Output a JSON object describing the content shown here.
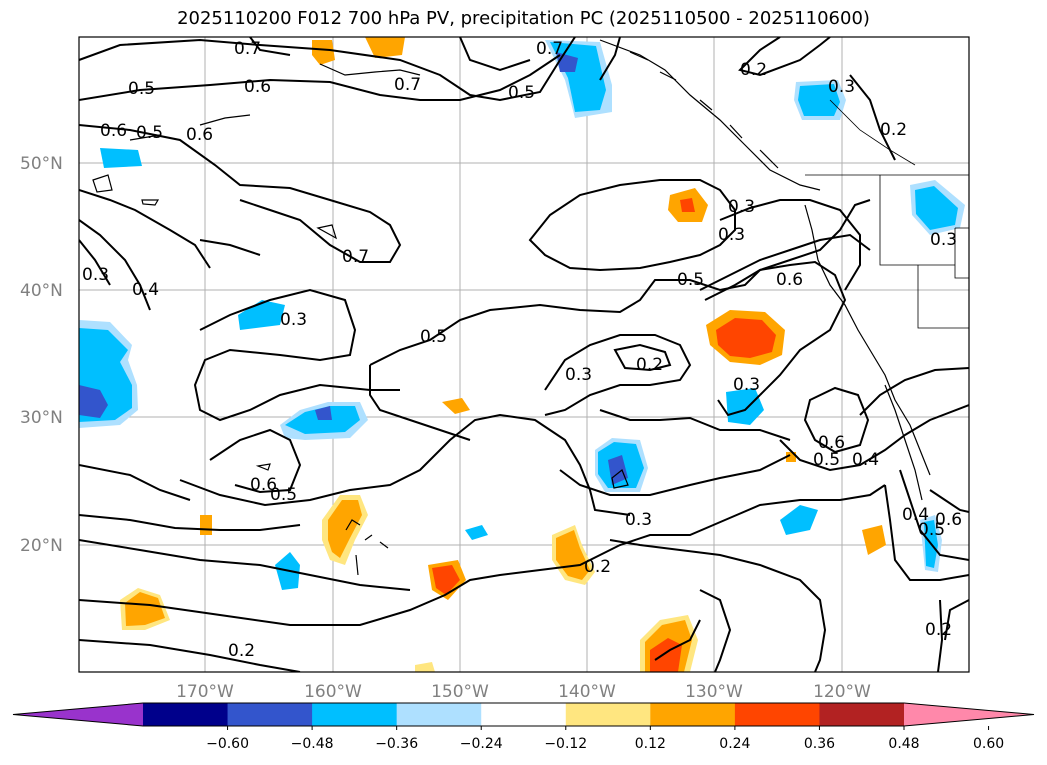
{
  "title": "2025110200 F012 700 hPa PV, precipitation PC (2025110500 - 2025110600)",
  "lat_labels": [
    "50°N",
    "40°N",
    "30°N",
    "20°N"
  ],
  "lon_labels": [
    "170°W",
    "160°W",
    "150°W",
    "140°W",
    "130°W",
    "120°W"
  ],
  "colorbar": {
    "ticks": [
      "−0.60",
      "−0.48",
      "−0.36",
      "−0.24",
      "−0.12",
      "0.12",
      "0.24",
      "0.36",
      "0.48",
      "0.60"
    ],
    "colors": [
      "#9933cc",
      "#00008b",
      "#3355cc",
      "#00bfff",
      "#aee0ff",
      "#ffffff",
      "#ffe680",
      "#ffa500",
      "#ff4500",
      "#b22222",
      "#ff88aa"
    ]
  },
  "contour_labels": [
    "0.7",
    "0.6",
    "0.7",
    "0.5",
    "0.7",
    "0.5",
    "0.2",
    "0.3",
    "0.5",
    "0.6",
    "0.6",
    "0.2",
    "0.7",
    "0.3",
    "0.4",
    "0.3",
    "0.5",
    "0.6",
    "0.3",
    "0.3",
    "0.3",
    "0.5",
    "0.3",
    "0.2",
    "0.3",
    "0.6",
    "0.5",
    "0.6",
    "0.5",
    "0.4",
    "0.3",
    "0.2",
    "0.4",
    "0.5",
    "0.6",
    "0.2",
    "0.2"
  ],
  "map_features": {
    "contour_field": "700 hPa PV",
    "shading_field": "precipitation PC",
    "grid": true
  }
}
